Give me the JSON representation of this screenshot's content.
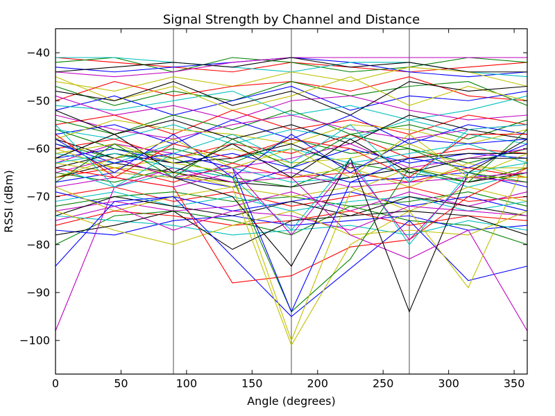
{
  "chart_data": {
    "type": "line",
    "title": "Signal Strength by Channel and Distance",
    "xlabel": "Angle (degrees)",
    "ylabel": "RSSI (dBm)",
    "xlim": [
      0,
      360
    ],
    "ylim": [
      -107,
      -35
    ],
    "x_ticks": [
      0,
      50,
      100,
      150,
      200,
      250,
      300,
      350
    ],
    "y_ticks": [
      -40,
      -50,
      -60,
      -70,
      -80,
      -90,
      -100
    ],
    "x_tick_labels": [
      "0",
      "50",
      "100",
      "150",
      "200",
      "250",
      "300",
      "350"
    ],
    "y_tick_labels": [
      "−40",
      "−50",
      "−60",
      "−70",
      "−80",
      "−90",
      "−100"
    ],
    "reference_lines_x": [
      90,
      180,
      270
    ],
    "reference_line_color": "#808080",
    "grid": false,
    "legend": "none",
    "x": [
      0,
      45,
      90,
      135,
      180,
      225,
      270,
      315,
      360
    ],
    "series": [
      {
        "color": "#ff0000",
        "values": [
          -41,
          -42,
          -43,
          -44,
          -42,
          -43,
          -44,
          -43,
          -42
        ]
      },
      {
        "color": "#008000",
        "values": [
          -42,
          -41,
          -44,
          -41,
          -42,
          -44,
          -43,
          -41,
          -42
        ]
      },
      {
        "color": "#0000ff",
        "values": [
          -43,
          -44,
          -43,
          -42,
          -41,
          -42,
          -44,
          -45,
          -44
        ]
      },
      {
        "color": "#00bfbf",
        "values": [
          -41,
          -41,
          -42,
          -43,
          -44,
          -42,
          -42,
          -44,
          -45
        ]
      },
      {
        "color": "#bf00bf",
        "values": [
          -44,
          -45,
          -44,
          -42,
          -41,
          -41,
          -41,
          -41,
          -41
        ]
      },
      {
        "color": "#bfbf00",
        "values": [
          -46,
          -48,
          -45,
          -47,
          -44,
          -46,
          -43,
          -44,
          -47
        ]
      },
      {
        "color": "#000000",
        "values": [
          -44,
          -43,
          -42,
          -43,
          -41,
          -43,
          -42,
          -44,
          -44
        ]
      },
      {
        "color": "#ff0000",
        "values": [
          -50,
          -46,
          -49,
          -47,
          -46,
          -48,
          -45,
          -49,
          -50
        ]
      },
      {
        "color": "#008000",
        "values": [
          -47,
          -51,
          -48,
          -50,
          -46,
          -49,
          -47,
          -46,
          -51
        ]
      },
      {
        "color": "#0000ff",
        "values": [
          -52,
          -49,
          -53,
          -50,
          -47,
          -52,
          -49,
          -50,
          -48
        ]
      },
      {
        "color": "#00bfbf",
        "values": [
          -51,
          -52,
          -50,
          -48,
          -53,
          -51,
          -54,
          -52,
          -49
        ]
      },
      {
        "color": "#bf00bf",
        "values": [
          -49,
          -53,
          -51,
          -54,
          -50,
          -49,
          -52,
          -54,
          -53
        ]
      },
      {
        "color": "#bfbf00",
        "values": [
          -45,
          -50,
          -47,
          -52,
          -49,
          -45,
          -51,
          -47,
          -50
        ]
      },
      {
        "color": "#000000",
        "values": [
          -48,
          -50,
          -46,
          -51,
          -48,
          -53,
          -46,
          -48,
          -47
        ]
      },
      {
        "color": "#ff0000",
        "values": [
          -55,
          -53,
          -57,
          -52,
          -56,
          -54,
          -57,
          -53,
          -55
        ]
      },
      {
        "color": "#008000",
        "values": [
          -54,
          -57,
          -53,
          -56,
          -52,
          -57,
          -55,
          -58,
          -54
        ]
      },
      {
        "color": "#0000ff",
        "values": [
          -57,
          -55,
          -59,
          -54,
          -58,
          -53,
          -59,
          -55,
          -57
        ]
      },
      {
        "color": "#00bfbf",
        "values": [
          -56,
          -58,
          -55,
          -59,
          -56,
          -58,
          -54,
          -57,
          -59
        ]
      },
      {
        "color": "#bf00bf",
        "values": [
          -53,
          -56,
          -58,
          -55,
          -53,
          -56,
          -58,
          -56,
          -55
        ]
      },
      {
        "color": "#bfbf00",
        "values": [
          -58,
          -54,
          -56,
          -57,
          -59,
          -55,
          -56,
          -59,
          -56
        ]
      },
      {
        "color": "#000000",
        "values": [
          -52,
          -57,
          -54,
          -58,
          -55,
          -59,
          -53,
          -56,
          -58
        ]
      },
      {
        "color": "#ff0000",
        "values": [
          -60,
          -58,
          -62,
          -59,
          -61,
          -57,
          -62,
          -60,
          -61
        ]
      },
      {
        "color": "#008000",
        "values": [
          -59,
          -62,
          -60,
          -63,
          -58,
          -61,
          -60,
          -63,
          -60
        ]
      },
      {
        "color": "#0000ff",
        "values": [
          -62,
          -60,
          -63,
          -61,
          -64,
          -60,
          -63,
          -61,
          -62
        ]
      },
      {
        "color": "#00bfbf",
        "values": [
          -61,
          -63,
          -59,
          -62,
          -60,
          -63,
          -61,
          -59,
          -63
        ]
      },
      {
        "color": "#bf00bf",
        "values": [
          -63,
          -59,
          -61,
          -64,
          -62,
          -59,
          -64,
          -62,
          -60
        ]
      },
      {
        "color": "#bfbf00",
        "values": [
          -60,
          -64,
          -62,
          -60,
          -63,
          -62,
          -59,
          -64,
          -64
        ]
      },
      {
        "color": "#000000",
        "values": [
          -64,
          -61,
          -63,
          -62,
          -59,
          -64,
          -62,
          -61,
          -61
        ]
      },
      {
        "color": "#ff0000",
        "values": [
          -66,
          -64,
          -67,
          -63,
          -66,
          -65,
          -67,
          -64,
          -66
        ]
      },
      {
        "color": "#008000",
        "values": [
          -65,
          -67,
          -64,
          -66,
          -68,
          -63,
          -65,
          -67,
          -64
        ]
      },
      {
        "color": "#0000ff",
        "values": [
          -67,
          -65,
          -66,
          -68,
          -64,
          -67,
          -66,
          -65,
          -68
        ]
      },
      {
        "color": "#00bfbf",
        "values": [
          -64,
          -68,
          -65,
          -64,
          -67,
          -66,
          -64,
          -68,
          -65
        ]
      },
      {
        "color": "#bf00bf",
        "values": [
          -68,
          -66,
          -68,
          -65,
          -65,
          -68,
          -67,
          -66,
          -67
        ]
      },
      {
        "color": "#bfbf00",
        "values": [
          -63,
          -65,
          -66,
          -67,
          -66,
          -64,
          -68,
          -63,
          -66
        ]
      },
      {
        "color": "#000000",
        "values": [
          -66,
          -63,
          -65,
          -67,
          -68,
          -66,
          -64,
          -67,
          -65
        ]
      },
      {
        "color": "#ff0000",
        "values": [
          -70,
          -68,
          -71,
          -69,
          -72,
          -70,
          -68,
          -71,
          -70
        ]
      },
      {
        "color": "#008000",
        "values": [
          -72,
          -70,
          -69,
          -71,
          -70,
          -72,
          -71,
          -69,
          -72
        ]
      },
      {
        "color": "#0000ff",
        "values": [
          -69,
          -72,
          -70,
          -73,
          -71,
          -69,
          -72,
          -70,
          -73
        ]
      },
      {
        "color": "#00bfbf",
        "values": [
          -71,
          -69,
          -72,
          -70,
          -73,
          -71,
          -70,
          -73,
          -71
        ]
      },
      {
        "color": "#bf00bf",
        "values": [
          -73,
          -71,
          -73,
          -72,
          -69,
          -73,
          -69,
          -72,
          -69
        ]
      },
      {
        "color": "#bfbf00",
        "values": [
          -68,
          -73,
          -70,
          -68,
          -70,
          -68,
          -73,
          -68,
          -71
        ]
      },
      {
        "color": "#000000",
        "values": [
          -74,
          -70,
          -72,
          -74,
          -71,
          -74,
          -70,
          -72,
          -74
        ]
      },
      {
        "color": "#ff0000",
        "values": [
          -76,
          -73,
          -74,
          -76,
          -75,
          -73,
          -76,
          -74,
          -75
        ]
      },
      {
        "color": "#008000",
        "values": [
          -80,
          -74,
          -73,
          -75,
          -78,
          -72,
          -75,
          -76,
          -80
        ]
      },
      {
        "color": "#0000ff",
        "values": [
          -77,
          -78,
          -75,
          -74,
          -76,
          -75,
          -74,
          -77,
          -76
        ]
      },
      {
        "color": "#00bfbf",
        "values": [
          -74,
          -75,
          -76,
          -78,
          -77,
          -76,
          -78,
          -75,
          -77
        ]
      },
      {
        "color": "#bf00bf",
        "values": [
          -75,
          -72,
          -77,
          -73,
          -74,
          -77,
          -72,
          -73,
          -74
        ]
      },
      {
        "color": "#bfbf00",
        "values": [
          -73,
          -77,
          -80,
          -76,
          -73,
          -78,
          -77,
          -78,
          -73
        ]
      },
      {
        "color": "#000000",
        "values": [
          -78,
          -76,
          -73,
          -81,
          -75,
          -74,
          -73,
          -74,
          -78
        ]
      },
      {
        "color": "#0000ff",
        "values": [
          -84.5,
          -71,
          -70,
          -82.5,
          -95,
          -85,
          -75,
          -87.5,
          -84.5
        ]
      },
      {
        "color": "#bf00bf",
        "values": [
          -98,
          -68,
          -64,
          -67,
          -66,
          -78,
          -83,
          -77,
          -98
        ]
      },
      {
        "color": "#ff0000",
        "values": [
          -64,
          -66,
          -68,
          -88,
          -86.5,
          -80.5,
          -79,
          -70,
          -64
        ]
      },
      {
        "color": "#bfbf00",
        "values": [
          -62,
          -64,
          -65,
          -68,
          -101,
          -80,
          -73,
          -89,
          -62
        ]
      },
      {
        "color": "#000000",
        "values": [
          -58,
          -62,
          -66,
          -70,
          -84.5,
          -62,
          -94,
          -65,
          -58
        ]
      },
      {
        "color": "#008000",
        "values": [
          -56,
          -60,
          -62,
          -66,
          -94,
          -83,
          -64,
          -67,
          -56
        ]
      },
      {
        "color": "#bfbf00",
        "values": [
          -61,
          -59,
          -63,
          -65,
          -100,
          -69,
          -64,
          -66,
          -61
        ]
      },
      {
        "color": "#0000ff",
        "values": [
          -59,
          -63,
          -61,
          -64,
          -94,
          -67,
          -62,
          -64,
          -59
        ]
      },
      {
        "color": "#00bfbf",
        "values": [
          -63,
          -61,
          -64,
          -66,
          -77,
          -62,
          -80,
          -65,
          -63
        ]
      },
      {
        "color": "#bf00bf",
        "values": [
          -65,
          -62,
          -66,
          -64,
          -78,
          -63,
          -79,
          -66,
          -65
        ]
      },
      {
        "color": "#ff0000",
        "values": [
          -57,
          -66,
          -59,
          -62,
          -58,
          -60,
          -66,
          -57,
          -57
        ]
      },
      {
        "color": "#008000",
        "values": [
          -67,
          -59,
          -66,
          -58,
          -64,
          -57,
          -60,
          -65,
          -67
        ]
      },
      {
        "color": "#0000ff",
        "values": [
          -58,
          -65,
          -57,
          -66,
          -57,
          -65,
          -58,
          -59,
          -58
        ]
      },
      {
        "color": "#000000",
        "values": [
          -62,
          -57,
          -65,
          -59,
          -66,
          -58,
          -65,
          -62,
          -62
        ]
      },
      {
        "color": "#bfbf00",
        "values": [
          -66,
          -62,
          -58,
          -64,
          -60,
          -66,
          -57,
          -66,
          -66
        ]
      },
      {
        "color": "#00bfbf",
        "values": [
          -55,
          -68,
          -61,
          -57,
          -63,
          -55,
          -67,
          -56,
          -55
        ]
      }
    ]
  }
}
